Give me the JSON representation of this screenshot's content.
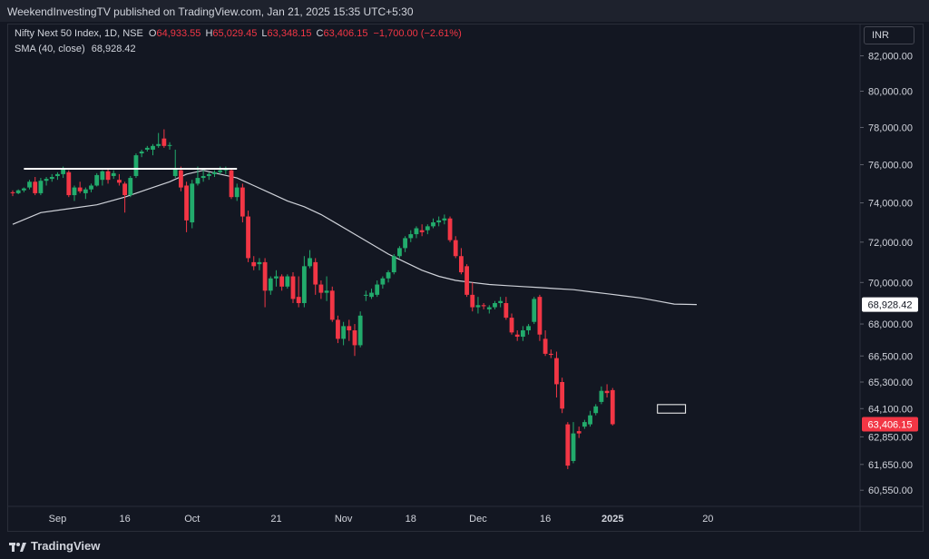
{
  "header": {
    "publish_text": "WeekendInvestingTV published on TradingView.com, Jan 21, 2025 15:35 UTC+5:30"
  },
  "legend": {
    "symbol": "Nifty Next 50 Index, 1D, NSE",
    "o_label": "O",
    "o_value": "64,933.55",
    "h_label": "H",
    "h_value": "65,029.45",
    "l_label": "L",
    "l_value": "63,348.15",
    "c_label": "C",
    "c_value": "63,406.15",
    "change": "−1,700.00 (−2.61%)",
    "sma_label": "SMA (40, close)",
    "sma_value": "68,928.42"
  },
  "currency": "INR",
  "footer": {
    "brand": "TradingView"
  },
  "colors": {
    "up": "#22ab6c",
    "down": "#f23645",
    "sma": "#cfd2d9",
    "background": "#131722"
  },
  "chart_data": {
    "type": "candlestick",
    "y_scale": "log",
    "ylim": [
      60100,
      82600
    ],
    "y_ticks": [
      {
        "value": 82000,
        "label": "82,000.00"
      },
      {
        "value": 80000,
        "label": "80,000.00"
      },
      {
        "value": 78000,
        "label": "78,000.00"
      },
      {
        "value": 76000,
        "label": "76,000.00"
      },
      {
        "value": 74000,
        "label": "74,000.00"
      },
      {
        "value": 72000,
        "label": "72,000.00"
      },
      {
        "value": 70000,
        "label": "70,000.00"
      },
      {
        "value": 68000,
        "label": "68,000.00"
      },
      {
        "value": 66500,
        "label": "66,500.00"
      },
      {
        "value": 65300,
        "label": "65,300.00"
      },
      {
        "value": 64100,
        "label": "64,100.00"
      },
      {
        "value": 62850,
        "label": "62,850.00"
      },
      {
        "value": 61650,
        "label": "61,650.00"
      },
      {
        "value": 60550,
        "label": "60,550.00"
      }
    ],
    "x_ticks": [
      {
        "index": 8,
        "label": "Sep"
      },
      {
        "index": 20,
        "label": "16"
      },
      {
        "index": 32,
        "label": "Oct"
      },
      {
        "index": 47,
        "label": "21"
      },
      {
        "index": 59,
        "label": "Nov"
      },
      {
        "index": 71,
        "label": "18"
      },
      {
        "index": 83,
        "label": "Dec"
      },
      {
        "index": 95,
        "label": "16"
      },
      {
        "index": 107,
        "label": "2025"
      },
      {
        "index": 124,
        "label": "20"
      }
    ],
    "price_labels": [
      {
        "value": 68928.42,
        "label": "68,928.42",
        "series": "sma"
      },
      {
        "value": 63406.15,
        "label": "63,406.15",
        "series": "last"
      }
    ],
    "candles": [
      [
        74550,
        74650,
        74350,
        74500
      ],
      [
        74500,
        74700,
        74450,
        74650
      ],
      [
        74650,
        74800,
        74550,
        74750
      ],
      [
        74800,
        75200,
        74700,
        75100
      ],
      [
        75100,
        75350,
        74400,
        74500
      ],
      [
        74500,
        75300,
        74400,
        75150
      ],
      [
        75150,
        75350,
        74900,
        75250
      ],
      [
        75250,
        75500,
        75100,
        75350
      ],
      [
        75400,
        75600,
        75200,
        75500
      ],
      [
        75500,
        75900,
        75300,
        75800
      ],
      [
        75600,
        75700,
        74300,
        74400
      ],
      [
        74400,
        74900,
        74100,
        74800
      ],
      [
        74800,
        75100,
        74500,
        74600
      ],
      [
        74500,
        74800,
        74200,
        74700
      ],
      [
        74700,
        75000,
        74550,
        74900
      ],
      [
        74900,
        75550,
        74850,
        75450
      ],
      [
        75200,
        75700,
        74900,
        75650
      ],
      [
        75650,
        75800,
        75000,
        75200
      ],
      [
        75400,
        75700,
        75250,
        75550
      ],
      [
        75200,
        75500,
        74900,
        75050
      ],
      [
        75000,
        75100,
        73500,
        74400
      ],
      [
        74400,
        75400,
        74300,
        75300
      ],
      [
        75400,
        76600,
        75300,
        76500
      ],
      [
        76600,
        76800,
        76400,
        76700
      ],
      [
        76800,
        77000,
        76700,
        76900
      ],
      [
        76800,
        77100,
        76500,
        77000
      ],
      [
        77000,
        77700,
        76900,
        77100
      ],
      [
        77400,
        77900,
        76900,
        77000
      ],
      [
        77000,
        77200,
        76800,
        77050
      ],
      [
        75400,
        76800,
        75300,
        75800
      ],
      [
        75700,
        75900,
        74600,
        74800
      ],
      [
        74900,
        75100,
        72500,
        73100
      ],
      [
        73000,
        75200,
        72700,
        75000
      ],
      [
        75000,
        75900,
        74900,
        75300
      ],
      [
        75300,
        75800,
        75100,
        75400
      ],
      [
        75400,
        75600,
        75200,
        75500
      ],
      [
        75500,
        75700,
        75350,
        75600
      ],
      [
        75600,
        75900,
        75500,
        75700
      ],
      [
        75700,
        75900,
        75500,
        75800
      ],
      [
        75700,
        75800,
        74200,
        74300
      ],
      [
        74300,
        75000,
        74100,
        74800
      ],
      [
        74800,
        75000,
        73000,
        73300
      ],
      [
        73300,
        73600,
        71000,
        71200
      ],
      [
        71000,
        71300,
        70600,
        70800
      ],
      [
        70900,
        71200,
        70600,
        71000
      ],
      [
        71000,
        71200,
        68800,
        69600
      ],
      [
        69600,
        70300,
        69400,
        70200
      ],
      [
        70200,
        70600,
        69800,
        70300
      ],
      [
        70300,
        70400,
        69600,
        69800
      ],
      [
        69800,
        70400,
        69700,
        70300
      ],
      [
        70300,
        70500,
        69000,
        69200
      ],
      [
        69300,
        70300,
        68800,
        69000
      ],
      [
        69000,
        71300,
        68800,
        70800
      ],
      [
        70800,
        71600,
        70700,
        71200
      ],
      [
        71000,
        71200,
        69400,
        69900
      ],
      [
        69900,
        70100,
        69200,
        69500
      ],
      [
        69500,
        70300,
        69100,
        69600
      ],
      [
        69600,
        69800,
        68100,
        68200
      ],
      [
        68200,
        68400,
        67100,
        67300
      ],
      [
        67300,
        68100,
        67000,
        67900
      ],
      [
        67900,
        68200,
        67200,
        67700
      ],
      [
        67700,
        68000,
        66500,
        67000
      ],
      [
        67000,
        68600,
        66900,
        68400
      ],
      [
        69400,
        69600,
        69100,
        69400
      ],
      [
        69300,
        69700,
        69200,
        69500
      ],
      [
        69400,
        70100,
        69300,
        69900
      ],
      [
        69900,
        70300,
        69700,
        70200
      ],
      [
        70200,
        70600,
        70000,
        70500
      ],
      [
        70500,
        71400,
        70400,
        71300
      ],
      [
        71300,
        71800,
        71200,
        71700
      ],
      [
        71700,
        72300,
        71500,
        72200
      ],
      [
        72200,
        72600,
        72000,
        72400
      ],
      [
        72400,
        72800,
        72200,
        72700
      ],
      [
        72600,
        72900,
        72300,
        72500
      ],
      [
        72600,
        72900,
        72400,
        72800
      ],
      [
        72800,
        73200,
        72700,
        73000
      ],
      [
        73000,
        73300,
        72800,
        73100
      ],
      [
        73100,
        73400,
        72900,
        73200
      ],
      [
        73200,
        73300,
        72000,
        72100
      ],
      [
        72100,
        72300,
        71200,
        71300
      ],
      [
        71300,
        71700,
        70400,
        70500
      ],
      [
        70800,
        70900,
        69300,
        69400
      ],
      [
        69400,
        70000,
        68600,
        68800
      ],
      [
        68800,
        69300,
        68500,
        68900
      ],
      [
        68900,
        69000,
        68700,
        68850
      ],
      [
        68700,
        68900,
        68500,
        68800
      ],
      [
        68800,
        69100,
        68700,
        69000
      ],
      [
        69000,
        69300,
        68800,
        69100
      ],
      [
        69000,
        69300,
        68200,
        68300
      ],
      [
        68300,
        68500,
        67500,
        67600
      ],
      [
        67500,
        67700,
        67200,
        67400
      ],
      [
        67400,
        67900,
        67200,
        67700
      ],
      [
        67700,
        68000,
        67500,
        67900
      ],
      [
        68100,
        69300,
        68000,
        69200
      ],
      [
        69300,
        69400,
        67200,
        67500
      ],
      [
        67300,
        67700,
        66500,
        66600
      ],
      [
        66600,
        66800,
        66400,
        66550
      ],
      [
        66400,
        66700,
        64600,
        65200
      ],
      [
        65300,
        65500,
        63900,
        64100
      ],
      [
        63400,
        63500,
        61450,
        61600
      ],
      [
        61800,
        63500,
        61700,
        63000
      ],
      [
        63100,
        63300,
        62800,
        63000
      ],
      [
        63300,
        63600,
        63200,
        63500
      ],
      [
        63400,
        64000,
        63300,
        63800
      ],
      [
        63900,
        64300,
        63800,
        64200
      ],
      [
        64400,
        65100,
        64300,
        64900
      ],
      [
        64900,
        65200,
        64600,
        64800
      ],
      [
        64933.55,
        65029.45,
        63348.15,
        63406.15
      ]
    ],
    "sma": [
      [
        0,
        72900
      ],
      [
        5,
        73500
      ],
      [
        10,
        73700
      ],
      [
        15,
        73900
      ],
      [
        20,
        74300
      ],
      [
        24,
        74700
      ],
      [
        28,
        75100
      ],
      [
        31,
        75500
      ],
      [
        34,
        75700
      ],
      [
        37,
        75500
      ],
      [
        40,
        75300
      ],
      [
        43,
        74900
      ],
      [
        46,
        74500
      ],
      [
        49,
        74100
      ],
      [
        52,
        73800
      ],
      [
        55,
        73400
      ],
      [
        58,
        72900
      ],
      [
        61,
        72400
      ],
      [
        64,
        71900
      ],
      [
        67,
        71400
      ],
      [
        70,
        71000
      ],
      [
        73,
        70600
      ],
      [
        76,
        70300
      ],
      [
        79,
        70100
      ],
      [
        82,
        70000
      ],
      [
        85,
        69900
      ],
      [
        88,
        69850
      ],
      [
        91,
        69800
      ],
      [
        94,
        69750
      ],
      [
        97,
        69700
      ],
      [
        100,
        69650
      ],
      [
        103,
        69550
      ],
      [
        106,
        69450
      ],
      [
        109,
        69350
      ],
      [
        112,
        69250
      ],
      [
        115,
        69100
      ],
      [
        118,
        68950
      ],
      [
        122,
        68928.42
      ]
    ],
    "annotations": [
      {
        "type": "horizontal_line",
        "value": 75780,
        "from_index": 2,
        "to_index": 40
      },
      {
        "type": "rectangle",
        "low": 63900,
        "high": 64280,
        "from_index": 115,
        "to_index": 120
      }
    ]
  }
}
